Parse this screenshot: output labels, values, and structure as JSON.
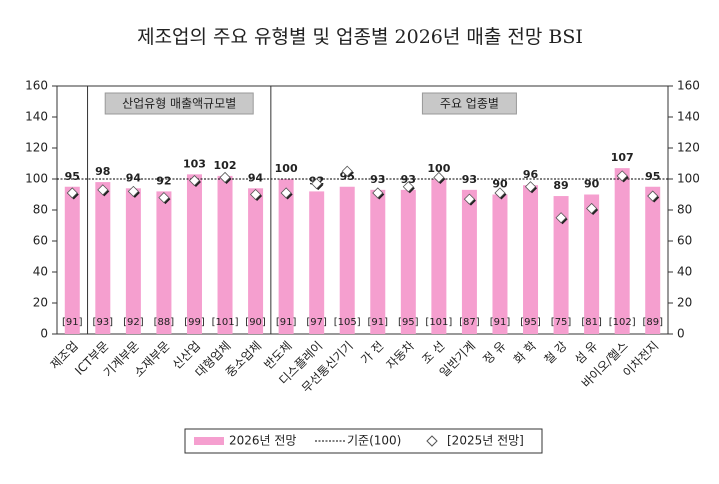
{
  "chart_data": {
    "type": "bar",
    "title": "제조업의 주요 유형별 및 업종별 2026년 매출 전망 BSI",
    "group_labels": [
      "산업유형 매출액규모별",
      "주요 업종별"
    ],
    "categories": [
      "제조업",
      "ICT부문",
      "기계부문",
      "소재부문",
      "신산업",
      "대형업체",
      "중소업체",
      "반도체",
      "디스플레이",
      "무선통신기기",
      "가 전",
      "자동차",
      "조 선",
      "일반기계",
      "정 유",
      "화 학",
      "철 강",
      "섬 유",
      "바이오/헬스",
      "이차전지"
    ],
    "series": [
      {
        "name": "2026년 전망",
        "color": "#f59fcf",
        "values": [
          95,
          98,
          94,
          92,
          103,
          102,
          94,
          100,
          92,
          95,
          93,
          93,
          100,
          93,
          90,
          96,
          89,
          90,
          107,
          95
        ]
      },
      {
        "name": "[2025년 전망]",
        "color": "#ffffff",
        "values": [
          91,
          93,
          92,
          88,
          99,
          101,
          90,
          91,
          97,
          105,
          91,
          95,
          101,
          87,
          91,
          95,
          75,
          81,
          102,
          89
        ],
        "value_labels": [
          "[91]",
          "[93]",
          "[92]",
          "[88]",
          "[99]",
          "[101]",
          "[90]",
          "[91]",
          "[97]",
          "[105]",
          "[91]",
          "[95]",
          "[101]",
          "[87]",
          "[91]",
          "[95]",
          "[75]",
          "[81]",
          "[102]",
          "[89]"
        ]
      }
    ],
    "reference": {
      "name": "기준(100)",
      "value": 100
    },
    "ylim": [
      0,
      160
    ],
    "yticks": [
      0,
      20,
      40,
      60,
      80,
      100,
      120,
      140,
      160
    ],
    "y2lim": [
      0,
      160
    ],
    "y2ticks": [
      0,
      20,
      40,
      60,
      80,
      100,
      120,
      140,
      160
    ]
  }
}
